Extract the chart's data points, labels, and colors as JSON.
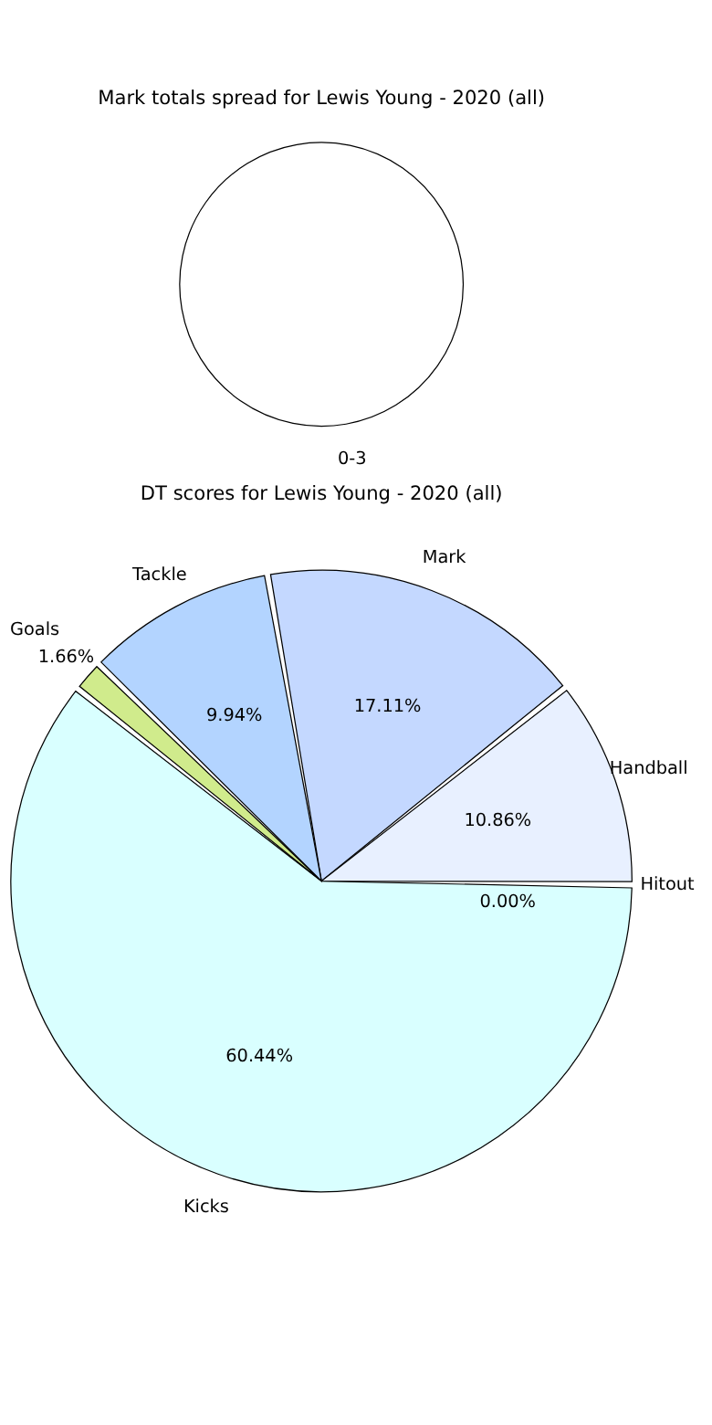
{
  "chart_data": [
    {
      "type": "pie",
      "title": "Mark totals spread for Lewis Young - 2020 (all)",
      "categories": [
        "0-3"
      ],
      "values": [
        100
      ],
      "colors": [
        "#ffffff"
      ]
    },
    {
      "type": "pie",
      "title": "DT scores for Lewis Young - 2020 (all)",
      "categories": [
        "Mark",
        "Handball",
        "Hitout",
        "Kicks",
        "Goals",
        "Tackle"
      ],
      "values": [
        17.11,
        10.86,
        0.0,
        60.44,
        1.66,
        9.94
      ],
      "colors": [
        "#c4d8ff",
        "#e8f0ff",
        "#e0e0e0",
        "#d9ffff",
        "#d0eb8c",
        "#b3d4ff"
      ],
      "value_labels": [
        "17.11%",
        "10.86%",
        "0.00%",
        "60.44%",
        "1.66%",
        "9.94%"
      ]
    }
  ]
}
